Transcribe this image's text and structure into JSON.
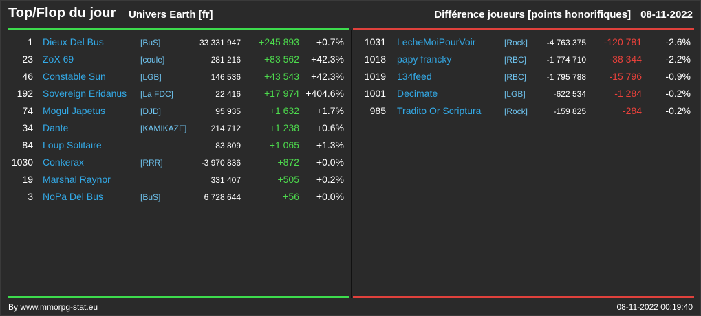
{
  "header": {
    "title": "Top/Flop du jour",
    "univers": "Univers Earth [fr]",
    "subtitle": "Différence joueurs [points honorifiques]",
    "date": "08-11-2022"
  },
  "colors": {
    "top": "#3ddc4d",
    "flop": "#e0413c",
    "name": "#33a9e6"
  },
  "top": [
    {
      "rank": "1",
      "name": "Dieux Del Bus",
      "tag": "[BuS]",
      "points": "33 331 947",
      "delta": "+245 893",
      "pct": "+0.7%"
    },
    {
      "rank": "23",
      "name": "ZoX 69",
      "tag": "[coule]",
      "points": "281 216",
      "delta": "+83 562",
      "pct": "+42.3%"
    },
    {
      "rank": "46",
      "name": "Constable Sun",
      "tag": "[LGB]",
      "points": "146 536",
      "delta": "+43 543",
      "pct": "+42.3%"
    },
    {
      "rank": "192",
      "name": "Sovereign Eridanus",
      "tag": "[La FDC]",
      "points": "22 416",
      "delta": "+17 974",
      "pct": "+404.6%"
    },
    {
      "rank": "74",
      "name": "Mogul Japetus",
      "tag": "[DJD]",
      "points": "95 935",
      "delta": "+1 632",
      "pct": "+1.7%"
    },
    {
      "rank": "34",
      "name": "Dante",
      "tag": "[KAMIKAZE]",
      "points": "214 712",
      "delta": "+1 238",
      "pct": "+0.6%"
    },
    {
      "rank": "84",
      "name": "Loup Solitaire",
      "tag": "",
      "points": "83 809",
      "delta": "+1 065",
      "pct": "+1.3%"
    },
    {
      "rank": "1030",
      "name": "Conkerax",
      "tag": "[RRR]",
      "points": "-3 970 836",
      "delta": "+872",
      "pct": "+0.0%"
    },
    {
      "rank": "19",
      "name": "Marshal Raynor",
      "tag": "",
      "points": "331 407",
      "delta": "+505",
      "pct": "+0.2%"
    },
    {
      "rank": "3",
      "name": "NoPa Del Bus",
      "tag": "[BuS]",
      "points": "6 728 644",
      "delta": "+56",
      "pct": "+0.0%"
    }
  ],
  "flop": [
    {
      "rank": "1031",
      "name": "LecheMoiPourVoir",
      "tag": "[Rock]",
      "points": "-4 763 375",
      "delta": "-120 781",
      "pct": "-2.6%"
    },
    {
      "rank": "1018",
      "name": "papy francky",
      "tag": "[RBC]",
      "points": "-1 774 710",
      "delta": "-38 344",
      "pct": "-2.2%"
    },
    {
      "rank": "1019",
      "name": "134feed",
      "tag": "[RBC]",
      "points": "-1 795 788",
      "delta": "-15 796",
      "pct": "-0.9%"
    },
    {
      "rank": "1001",
      "name": "Decimate",
      "tag": "[LGB]",
      "points": "-622 534",
      "delta": "-1 284",
      "pct": "-0.2%"
    },
    {
      "rank": "985",
      "name": "Tradito Or Scriptura",
      "tag": "[Rock]",
      "points": "-159 825",
      "delta": "-284",
      "pct": "-0.2%"
    }
  ],
  "footer": {
    "credit": "By www.mmorpg-stat.eu",
    "timestamp": "08-11-2022 00:19:40"
  }
}
